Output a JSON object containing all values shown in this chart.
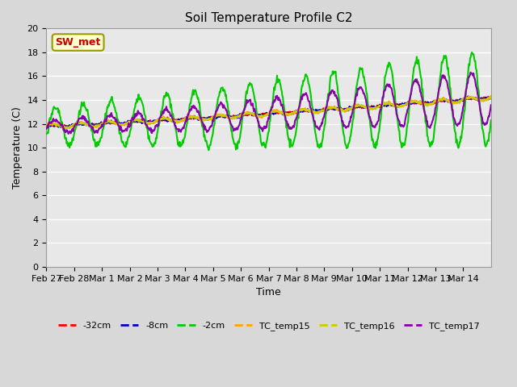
{
  "title": "Soil Temperature Profile C2",
  "xlabel": "Time",
  "ylabel": "Temperature (C)",
  "ylim": [
    0,
    20
  ],
  "n_days": 16,
  "background_color": "#e8e8e8",
  "grid_color": "#ffffff",
  "annotation_text": "SW_met",
  "annotation_color": "#cc0000",
  "annotation_bg": "#ffffcc",
  "annotation_border": "#999900",
  "xtick_labels": [
    "Feb 27",
    "Feb 28",
    "Mar 1",
    "Mar 2",
    "Mar 3",
    "Mar 4",
    "Mar 5",
    "Mar 6",
    "Mar 7",
    "Mar 8",
    "Mar 9",
    "Mar 10",
    "Mar 11",
    "Mar 12",
    "Mar 13",
    "Mar 14"
  ],
  "series": {
    "-32cm": {
      "color": "#ff0000",
      "lw": 1.5
    },
    "-8cm": {
      "color": "#0000cc",
      "lw": 1.5
    },
    "-2cm": {
      "color": "#00cc00",
      "lw": 1.5
    },
    "TC_temp15": {
      "color": "#ffa500",
      "lw": 1.5
    },
    "TC_temp16": {
      "color": "#cccc00",
      "lw": 1.5
    },
    "TC_temp17": {
      "color": "#8800aa",
      "lw": 1.5
    }
  }
}
